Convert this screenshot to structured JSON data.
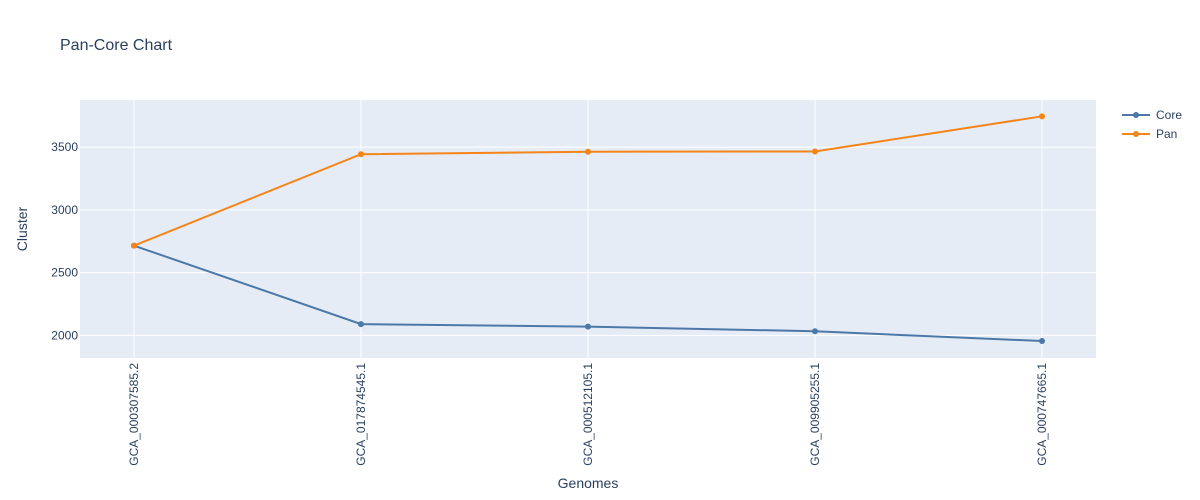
{
  "chart_data": {
    "type": "line",
    "title": "Pan-Core Chart",
    "xlabel": "Genomes",
    "ylabel": "Cluster",
    "categories": [
      "GCA_000307585.2",
      "GCA_017874545.1",
      "GCA_000512105.1",
      "GCA_009905255.1",
      "GCA_000747665.1"
    ],
    "ylim": [
      1820,
      3875
    ],
    "yticks": [
      2000,
      2500,
      3000,
      3500
    ],
    "grid": true,
    "legend_position": "top-right",
    "background_color": "#e5ecf6",
    "series": [
      {
        "name": "Core",
        "color": "#4c78a8",
        "values": [
          2715,
          2090,
          2070,
          2033,
          1955
        ]
      },
      {
        "name": "Pan",
        "color": "#f58518",
        "values": [
          2715,
          3443,
          3463,
          3465,
          3745
        ]
      }
    ]
  }
}
